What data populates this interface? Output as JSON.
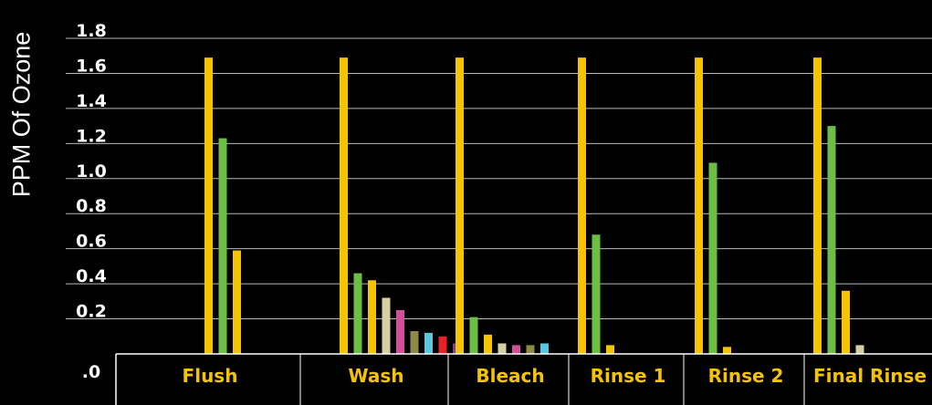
{
  "chart_data": {
    "type": "bar",
    "title": "",
    "xlabel": "",
    "ylabel": "PPM Of Ozone",
    "ylim": [
      0,
      1.8
    ],
    "grid": true,
    "y_ticks": [
      {
        "value": 0,
        "label": ".0"
      },
      {
        "value": 0.2,
        "label": "0.2"
      },
      {
        "value": 0.4,
        "label": "0.4"
      },
      {
        "value": 0.6,
        "label": "0.6"
      },
      {
        "value": 0.8,
        "label": "0.8"
      },
      {
        "value": 1.0,
        "label": "1.0"
      },
      {
        "value": 1.2,
        "label": "1.2"
      },
      {
        "value": 1.4,
        "label": "1.4"
      },
      {
        "value": 1.6,
        "label": "1.6"
      },
      {
        "value": 1.8,
        "label": "1.8"
      }
    ],
    "categories": [
      {
        "name": "Flush",
        "values": [
          1.69,
          1.23,
          0.59
        ],
        "colors": [
          "#f5c400",
          "#6cbf44",
          "#f5c400"
        ]
      },
      {
        "name": "Wash",
        "values": [
          1.69,
          0.46,
          0.42,
          0.32,
          0.25,
          0.13,
          0.12,
          0.1,
          0.06
        ],
        "colors": [
          "#f5c400",
          "#6cbf44",
          "#f5c400",
          "#d6cfa3",
          "#d24f9c",
          "#8c8a45",
          "#5bc7de",
          "#e8202a",
          "#7a3f98"
        ]
      },
      {
        "name": "Bleach",
        "values": [
          1.69,
          0.21,
          0.11,
          0.06,
          0.05,
          0.05,
          0.06
        ],
        "colors": [
          "#f5c400",
          "#6cbf44",
          "#f5c400",
          "#d6cfa3",
          "#d24f9c",
          "#8c8a45",
          "#5bc7de"
        ]
      },
      {
        "name": "Rinse 1",
        "values": [
          1.69,
          0.68,
          0.05
        ],
        "colors": [
          "#f5c400",
          "#6cbf44",
          "#f5c400"
        ]
      },
      {
        "name": "Rinse 2",
        "values": [
          1.69,
          1.09,
          0.04
        ],
        "colors": [
          "#f5c400",
          "#6cbf44",
          "#f5c400"
        ]
      },
      {
        "name": "Final Rinse",
        "values": [
          1.69,
          1.3,
          0.36,
          0.05
        ],
        "colors": [
          "#f5c400",
          "#6cbf44",
          "#f5c400",
          "#d6cfa3"
        ]
      }
    ]
  }
}
